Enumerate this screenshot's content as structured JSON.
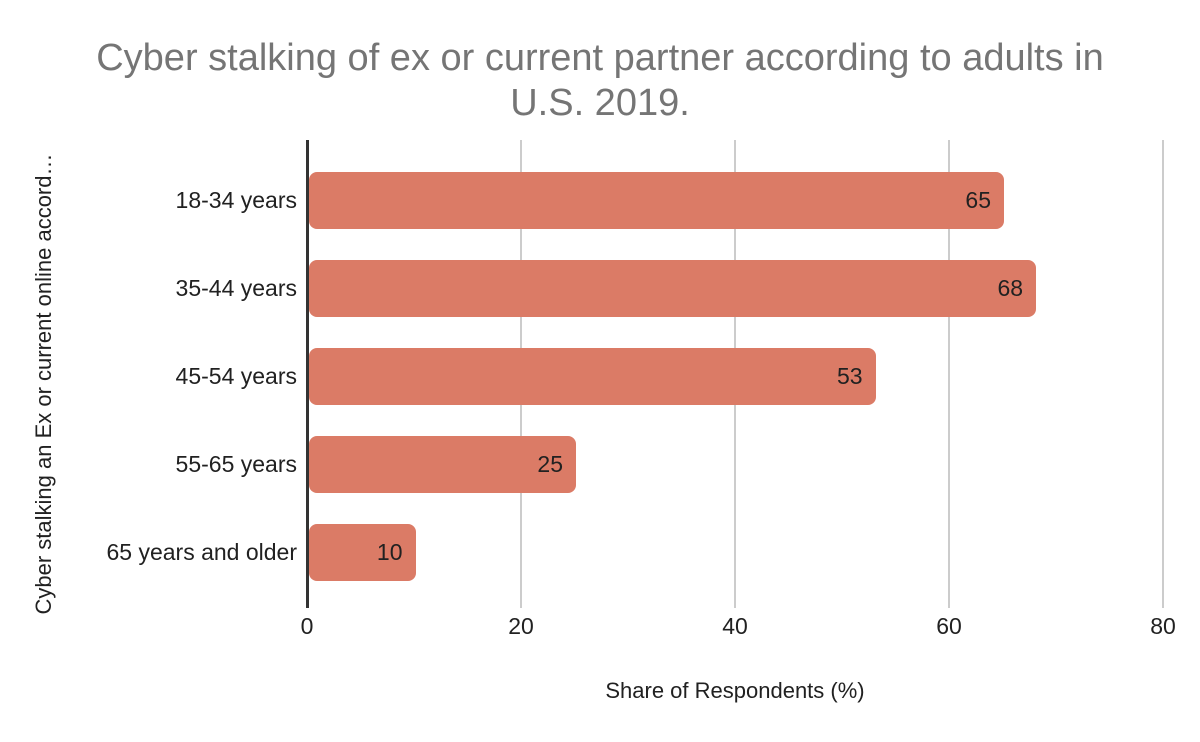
{
  "chart_title_lines": [
    "Cyber stalking of ex or current partner according to adults in",
    "U.S. 2019."
  ],
  "chart_data": {
    "type": "bar",
    "orientation": "horizontal",
    "title": "Cyber stalking of ex or current partner according to adults in U.S. 2019.",
    "categories": [
      "18-34 years",
      "35-44 years",
      "45-54 years",
      "55-65 years",
      "65 years and older"
    ],
    "values": [
      65,
      68,
      53,
      25,
      10
    ],
    "value_labels": [
      "65",
      "68",
      "53",
      "25",
      "10"
    ],
    "xlabel": "Share of Respondents (%)",
    "ylabel": "Cyber stalking an Ex or current online accord…",
    "xlim": [
      0,
      80
    ],
    "xticks": [
      "0",
      "20",
      "40",
      "60",
      "80"
    ],
    "grid": true,
    "legend": false,
    "colors": {
      "bar": "#DB7B66",
      "title_text": "#757575",
      "label_text": "#212121",
      "gridline": "#CCCCCC",
      "axis_line": "#333333"
    }
  }
}
